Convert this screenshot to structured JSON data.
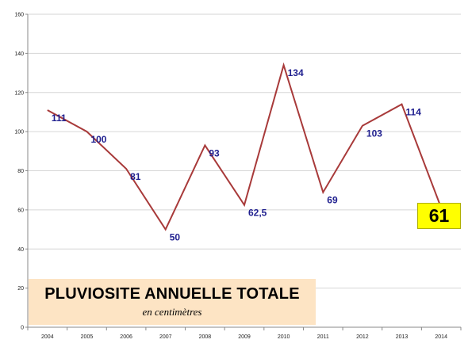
{
  "chart_data": {
    "type": "line",
    "title": "PLUVIOSITE ANNUELLE TOTALE",
    "subtitle": "en centimètres",
    "x": [
      "2004",
      "2005",
      "2006",
      "2007",
      "2008",
      "2009",
      "2010",
      "2011",
      "2012",
      "2013",
      "2014"
    ],
    "series": [
      {
        "values": [
          111,
          100,
          81,
          50,
          93,
          62.5,
          134,
          69,
          103,
          114,
          61
        ],
        "labels": [
          "111",
          "100",
          "81",
          "50",
          "93",
          "62,5",
          "134",
          "69",
          "103",
          "114",
          "61"
        ]
      }
    ],
    "yticks": [
      "0",
      "20",
      "40",
      "60",
      "80",
      "100",
      "120",
      "140",
      "160"
    ],
    "ylim": [
      0,
      160
    ],
    "grid": true,
    "line_color": "#a83a3a",
    "label_color": "#1f1f8f",
    "highlight": {
      "value": "61",
      "color": "#ffff00"
    }
  }
}
